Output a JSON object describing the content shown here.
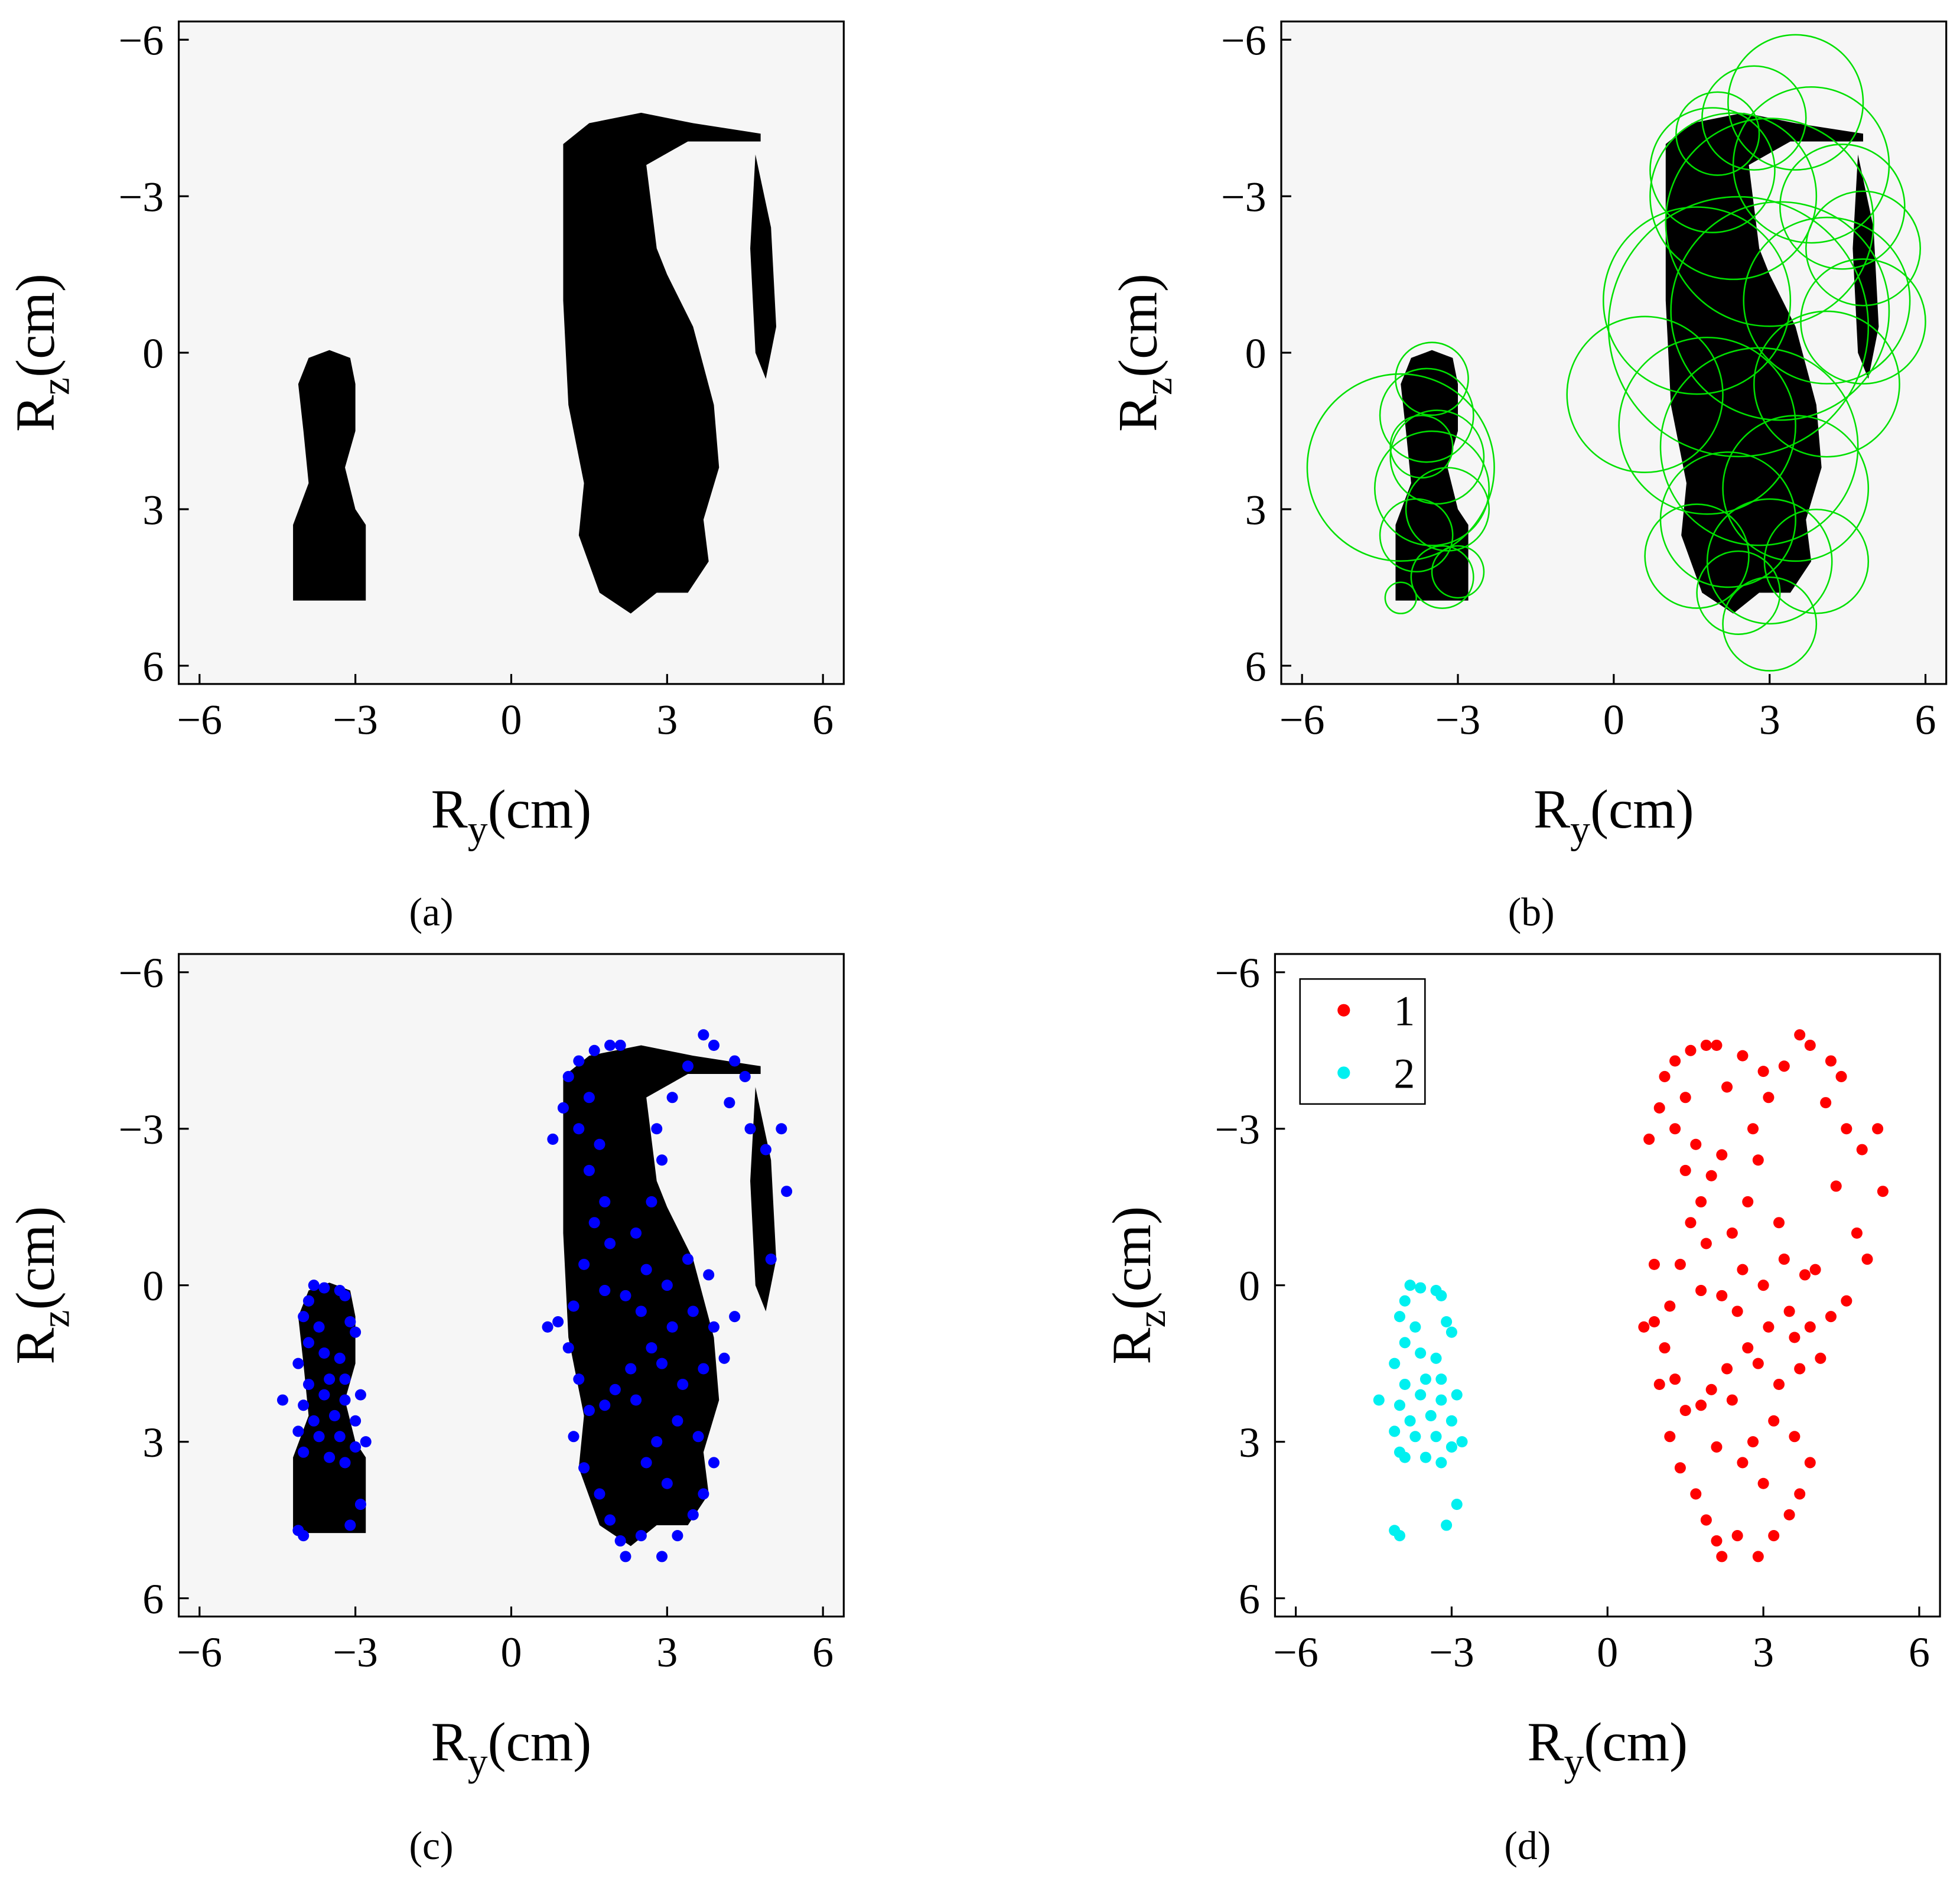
{
  "chart_data": [
    {
      "type": "image",
      "caption": "(a)",
      "background": "#f6f6f6",
      "xlabel": [
        "R",
        "y",
        "(cm)"
      ],
      "ylabel": [
        "R",
        "z",
        "(cm)"
      ],
      "xlim": [
        -6.4,
        6.4
      ],
      "ylim": [
        -6.35,
        6.35
      ],
      "xticks": [
        {
          "value": -6,
          "label": "−6"
        },
        {
          "value": -3,
          "label": "−3"
        },
        0,
        3,
        6
      ],
      "yticks": [
        {
          "value": -6,
          "label": "−6"
        },
        {
          "value": -3,
          "label": "−3"
        },
        0,
        3,
        6
      ]
    },
    {
      "type": "circle",
      "caption": "(b)",
      "background": "#f6f6f6",
      "xlabel": [
        "R",
        "y",
        "(cm)"
      ],
      "ylabel": [
        "R",
        "z",
        "(cm)"
      ],
      "xlim": [
        -6.4,
        6.4
      ],
      "ylim": [
        -6.35,
        6.35
      ],
      "xticks": [
        {
          "value": -6,
          "label": "−6"
        },
        {
          "value": -3,
          "label": "−3"
        },
        0,
        3,
        6
      ],
      "yticks": [
        {
          "value": -6,
          "label": "−6"
        },
        {
          "value": -3,
          "label": "−3"
        },
        0,
        3,
        6
      ],
      "series": [
        {
          "color": "#00e000",
          "x": [
            -3.5,
            -3.6,
            -3.4,
            -3.5,
            -4.1,
            -3.2,
            -3.8,
            -3.3,
            -4.1,
            -3.0,
            -3.7,
            1.9,
            2.3,
            3.0,
            3.8,
            4.4,
            4.8,
            1.6,
            2.4,
            3.2,
            4.1,
            0.6,
            1.8,
            2.8,
            3.5,
            2.2,
            3.0,
            2.4,
            3.0,
            1.6,
            3.9,
            4.1,
            2.0,
            2.7,
            3.5,
            4.8
          ],
          "y": [
            0.5,
            1.2,
            2.0,
            2.6,
            2.2,
            3.0,
            3.5,
            4.3,
            4.7,
            4.2,
            1.8,
            -3.5,
            -3.0,
            -2.5,
            -3.6,
            -2.8,
            -2.0,
            -1.0,
            -0.5,
            -0.8,
            -1.0,
            0.8,
            1.4,
            1.8,
            2.6,
            3.2,
            4.0,
            4.6,
            5.2,
            3.9,
            4.0,
            0.6,
            -4.2,
            -4.5,
            -4.8,
            -0.6
          ],
          "r": [
            0.7,
            0.9,
            0.9,
            1.1,
            1.8,
            0.8,
            0.7,
            0.6,
            0.3,
            0.5,
            0.6,
            1.2,
            1.6,
            2.0,
            1.5,
            1.2,
            1.1,
            1.8,
            2.5,
            2.1,
            1.6,
            1.5,
            1.7,
            1.9,
            1.4,
            1.3,
            1.2,
            0.8,
            0.9,
            1.0,
            1.0,
            1.4,
            0.8,
            1.0,
            1.3,
            1.2
          ]
        }
      ]
    },
    {
      "type": "scatter",
      "caption": "(c)",
      "background": "#f6f6f6",
      "xlabel": [
        "R",
        "y",
        "(cm)"
      ],
      "ylabel": [
        "R",
        "z",
        "(cm)"
      ],
      "xlim": [
        -6.4,
        6.4
      ],
      "ylim": [
        -6.35,
        6.35
      ],
      "xticks": [
        {
          "value": -6,
          "label": "−6"
        },
        {
          "value": -3,
          "label": "−3"
        },
        0,
        3,
        6
      ],
      "yticks": [
        {
          "value": -6,
          "label": "−6"
        },
        {
          "value": -3,
          "label": "−3"
        },
        0,
        3,
        6
      ],
      "series": [
        {
          "color": "#0000ff",
          "x": [
            -3.8,
            -3.6,
            -3.3,
            -3.2,
            -3.9,
            -4.0,
            -3.7,
            -3.1,
            -3.0,
            -3.9,
            -3.6,
            -4.1,
            -3.3,
            -3.5,
            -3.9,
            -3.2,
            -4.4,
            -4.0,
            -3.6,
            -3.2,
            -2.9,
            -3.8,
            -3.4,
            -3.0,
            -2.8,
            -4.1,
            -3.7,
            -3.3,
            -3.0,
            -4.0,
            -3.5,
            -3.2,
            -2.9,
            -3.1,
            -4.1,
            -4.0,
            0.8,
            1.0,
            1.1,
            1.3,
            1.6,
            1.9,
            2.1,
            1.5,
            1.3,
            1.7,
            1.5,
            1.8,
            1.6,
            1.9,
            1.4,
            1.8,
            1.2,
            0.9,
            1.1,
            0.7,
            1.3,
            1.5,
            1.2,
            1.4,
            1.7,
            1.9,
            2.1,
            2.2,
            2.5,
            2.9,
            3.2,
            3.5,
            3.7,
            3.9,
            3.6,
            3.2,
            2.8,
            2.6,
            3.0,
            2.4,
            2.0,
            1.8,
            2.3,
            2.7,
            3.1,
            3.5,
            3.9,
            4.3,
            4.1,
            3.7,
            3.3,
            2.9,
            2.5,
            2.2,
            2.6,
            3.0,
            3.4,
            3.8,
            2.4,
            2.7,
            2.9,
            2.8,
            3.1,
            3.4,
            3.7,
            3.9,
            4.3,
            4.5,
            4.2,
            4.6,
            4.9,
            5.2,
            5.3,
            5.0
          ],
          "y": [
            0.0,
            0.05,
            0.1,
            0.2,
            0.3,
            0.6,
            0.8,
            0.7,
            0.9,
            1.1,
            1.3,
            1.5,
            1.4,
            1.8,
            1.9,
            1.8,
            2.2,
            2.3,
            2.1,
            2.2,
            2.1,
            2.6,
            2.5,
            2.6,
            3.0,
            2.8,
            2.9,
            2.9,
            3.1,
            3.2,
            3.3,
            3.4,
            4.2,
            4.6,
            4.7,
            4.8,
            -2.8,
            -3.4,
            -4.0,
            -4.3,
            -4.5,
            -4.6,
            -4.6,
            -3.6,
            -3.0,
            -2.7,
            -2.2,
            -1.6,
            -1.2,
            -0.8,
            -0.4,
            0.1,
            0.4,
            0.7,
            1.2,
            0.8,
            1.8,
            2.4,
            2.9,
            3.5,
            4.0,
            4.5,
            4.9,
            5.2,
            4.8,
            5.2,
            4.8,
            4.4,
            4.0,
            3.4,
            2.9,
            2.6,
            3.0,
            3.4,
            3.8,
            2.2,
            2.0,
            2.3,
            1.6,
            1.2,
            0.8,
            0.5,
            0.8,
            0.6,
            1.4,
            1.6,
            1.9,
            1.5,
            0.5,
            0.2,
            -0.3,
            0.0,
            -0.5,
            -0.2,
            -1.0,
            -1.6,
            -2.4,
            -3.0,
            -3.6,
            -4.2,
            -4.8,
            -4.6,
            -4.3,
            -4.0,
            -3.5,
            -3.0,
            -2.6,
            -3.0,
            -1.8,
            -0.5
          ]
        }
      ]
    },
    {
      "type": "scatter",
      "caption": "(d)",
      "legend": "upper left",
      "xlabel": [
        "R",
        "y",
        "(cm)"
      ],
      "ylabel": [
        "R",
        "z",
        "(cm)"
      ],
      "xlim": [
        -6.4,
        6.4
      ],
      "ylim": [
        -6.35,
        6.35
      ],
      "xticks": [
        {
          "value": -6,
          "label": "−6"
        },
        {
          "value": -3,
          "label": "−3"
        },
        0,
        3,
        6
      ],
      "yticks": [
        {
          "value": -6,
          "label": "−6"
        },
        {
          "value": -3,
          "label": "−3"
        },
        0,
        3,
        6
      ],
      "series": [
        {
          "name": "1",
          "color": "#ff0000",
          "x": [
            0.8,
            1.0,
            1.1,
            1.3,
            1.6,
            1.9,
            2.1,
            1.5,
            1.3,
            1.7,
            1.5,
            1.8,
            1.6,
            1.9,
            1.4,
            1.8,
            1.2,
            0.9,
            1.1,
            0.7,
            1.3,
            1.5,
            1.2,
            1.4,
            1.7,
            1.9,
            2.1,
            2.2,
            2.5,
            2.9,
            3.2,
            3.5,
            3.7,
            3.9,
            3.6,
            3.2,
            2.8,
            2.6,
            3.0,
            2.4,
            2.0,
            1.8,
            2.3,
            2.7,
            3.1,
            3.5,
            3.9,
            4.3,
            4.1,
            3.7,
            3.3,
            2.9,
            2.5,
            2.2,
            2.6,
            3.0,
            3.4,
            3.8,
            2.4,
            2.7,
            2.9,
            2.8,
            3.1,
            3.4,
            3.7,
            3.9,
            4.3,
            4.5,
            4.2,
            4.6,
            4.9,
            5.2,
            5.3,
            5.0,
            4.8,
            4.6,
            2.3,
            2.2,
            3.3,
            3.0,
            2.6,
            4.4,
            1.0,
            0.9,
            2.0,
            3.6,
            2.1,
            4.0
          ],
          "y": [
            -2.8,
            -3.4,
            -4.0,
            -4.3,
            -4.5,
            -4.6,
            -4.6,
            -3.6,
            -3.0,
            -2.7,
            -2.2,
            -1.6,
            -1.2,
            -0.8,
            -0.4,
            0.1,
            0.4,
            0.7,
            1.2,
            0.8,
            1.8,
            2.4,
            2.9,
            3.5,
            4.0,
            4.5,
            4.9,
            5.2,
            4.8,
            5.2,
            4.8,
            4.4,
            4.0,
            3.4,
            2.9,
            2.6,
            3.0,
            3.4,
            3.8,
            2.2,
            2.0,
            2.3,
            1.6,
            1.2,
            0.8,
            0.5,
            0.8,
            0.6,
            1.4,
            1.6,
            1.9,
            1.5,
            0.5,
            0.2,
            -0.3,
            0.0,
            -0.5,
            -0.2,
            -1.0,
            -1.6,
            -2.4,
            -3.0,
            -3.6,
            -4.2,
            -4.8,
            -4.6,
            -4.3,
            -4.0,
            -3.5,
            -3.0,
            -2.6,
            -3.0,
            -1.8,
            -0.5,
            -1.0,
            0.3,
            -3.8,
            -2.5,
            -1.2,
            -4.1,
            -4.4,
            -1.9,
            1.9,
            -0.4,
            -2.1,
            1.0,
            3.1,
            -0.3
          ]
        },
        {
          "name": "2",
          "color": "#00f0f0",
          "x": [
            -3.8,
            -3.6,
            -3.3,
            -3.2,
            -3.9,
            -4.0,
            -3.7,
            -3.1,
            -3.0,
            -3.9,
            -3.6,
            -4.1,
            -3.3,
            -3.5,
            -3.9,
            -3.2,
            -4.4,
            -4.0,
            -3.6,
            -3.2,
            -2.9,
            -3.8,
            -3.4,
            -3.0,
            -2.8,
            -4.1,
            -3.7,
            -3.3,
            -3.0,
            -4.0,
            -3.5,
            -3.2,
            -2.9,
            -3.1,
            -4.1,
            -4.0,
            -3.9
          ],
          "y": [
            0.0,
            0.05,
            0.1,
            0.2,
            0.3,
            0.6,
            0.8,
            0.7,
            0.9,
            1.1,
            1.3,
            1.5,
            1.4,
            1.8,
            1.9,
            1.8,
            2.2,
            2.3,
            2.1,
            2.2,
            2.1,
            2.6,
            2.5,
            2.6,
            3.0,
            2.8,
            2.9,
            2.9,
            3.1,
            3.2,
            3.3,
            3.4,
            4.2,
            4.6,
            4.7,
            4.8,
            3.3
          ]
        }
      ]
    }
  ]
}
